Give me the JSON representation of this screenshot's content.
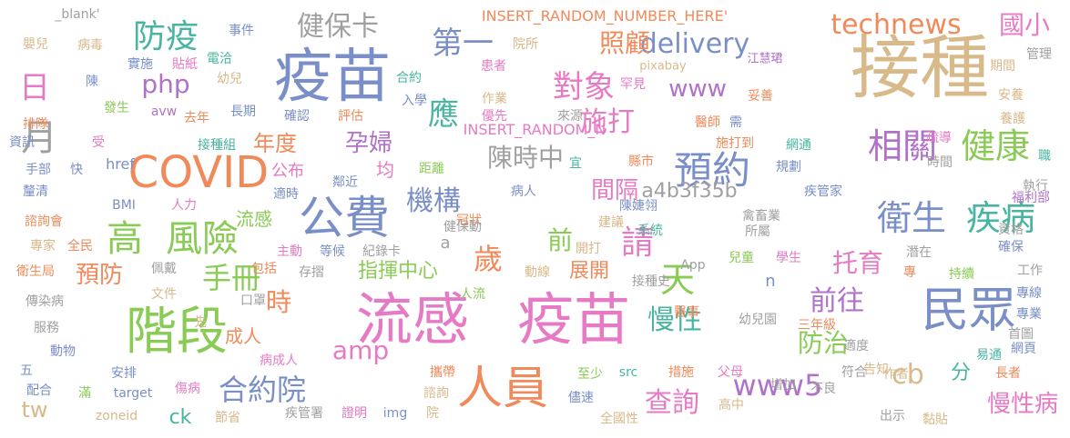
{
  "words": [
    "接種",
    "流感",
    "疫苗",
    "疫苗",
    "階段",
    "人員",
    "民眾",
    "COVID",
    "公費",
    "衛生",
    "疾病",
    "高",
    "風險",
    "預約",
    "健康",
    "相關",
    "第一",
    "防疫",
    "健保卡",
    "technews",
    "國小",
    "delivery",
    "對象",
    "照顧",
    "應",
    "施打",
    "月",
    "日",
    "php",
    "www",
    "年度",
    "孕婦",
    "陳時中",
    "機構",
    "間隔",
    "a4b3f35b",
    "前",
    "請",
    "托育",
    "天",
    "歲",
    "預防",
    "手冊",
    "指揮中心",
    "展開",
    "前往",
    "時",
    "慢性",
    "防治",
    "amp",
    "合約院",
    "查詢",
    "www5",
    "cb",
    "分",
    "慢性病",
    "tw",
    "ck",
    "成人",
    "流感",
    "公布",
    "均",
    "INSERT_RANDOM_NUMBER_HERE'",
    "INSERT_RANDOM_N",
    "_blank'",
    "事件",
    "嬰兒",
    "病毒",
    "實施",
    "貼紙",
    "電洽",
    "合約",
    "院所",
    "患者",
    "pixabay",
    "江慧珺",
    "管理",
    "期間",
    "幼兒",
    "入學",
    "作業",
    "罕見",
    "妥善",
    "安養",
    "陳",
    "發生",
    "avw",
    "去年",
    "長期",
    "確認",
    "評估",
    "優先",
    "來源",
    "醫師",
    "需",
    "疏導",
    "養護",
    "排隊",
    "資訊",
    "受",
    "接種組",
    "施打到",
    "網通",
    "時間",
    "職",
    "手部",
    "快",
    "距離",
    "宜",
    "縣市",
    "規劃",
    "執行",
    "釐清",
    "適時",
    "鄰近",
    "疾管家",
    "福利部",
    "BMI",
    "人力",
    "病人",
    "陳婕翎",
    "冠狀",
    "禽畜業",
    "諮詢會",
    "健保動",
    "系統",
    "資格",
    "專家",
    "全民",
    "建議",
    "所屬",
    "確保",
    "衛生局",
    "主動",
    "等候",
    "紀錄卡",
    "開打",
    "兒童",
    "學生",
    "潛在",
    "佩戴",
    "包括",
    "存摺",
    "動線",
    "App",
    "專",
    "持續",
    "工作",
    "文件",
    "口罩",
    "n",
    "專線",
    "傳染病",
    "人流",
    "接種史",
    "專業",
    "服務",
    "先",
    "病成人",
    "醫事",
    "幼兒園",
    "三年級",
    "首圖",
    "動物",
    "適度",
    "網頁",
    "五",
    "安排",
    "攜帶",
    "告知",
    "易通",
    "配合",
    "傷病",
    "至少",
    "src",
    "措施",
    "父母",
    "符合",
    "作者",
    "長者",
    "滿",
    "target",
    "諮詢",
    "儘速",
    "高中",
    "增加",
    "不良",
    "zoneid",
    "節省",
    "疾管署",
    "證明",
    "img",
    "院",
    "全國性",
    "出示",
    "黏貼",
    "a",
    "href"
  ]
}
